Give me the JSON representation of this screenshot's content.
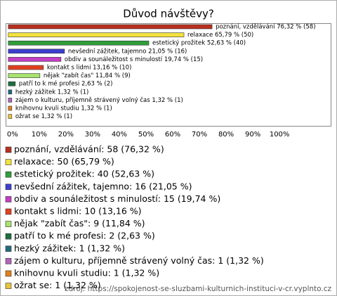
{
  "chart_data": {
    "type": "bar",
    "orientation": "horizontal",
    "title": "Důvod návštěvy?",
    "values": [
      76.32,
      65.79,
      52.63,
      21.05,
      19.74,
      13.16,
      11.84,
      2.63,
      1.32,
      1.32,
      1.32,
      1.32
    ],
    "value_labels": [
      "poznání, vzdělávání 76,32 % (58)",
      "relaxace 65,79 % (50)",
      "estetický prožitek 52,63 % (40)",
      "nevšední zážitek, tajemno 21,05 % (16)",
      "obdiv a sounáležitost s minulostí 19,74 % (15)",
      "kontakt s lidmi 13,16 % (10)",
      "nějak \"zabít čas\" 11,84 % (9)",
      "patří to k mé profesi 2,63 % (2)",
      "hezký zážitek 1,32 % (1)",
      "zájem o kulturu, příjemně strávený volný čas 1,32 % (1)",
      "knihovnu kvuli studiu 1,32 % (1)",
      "ožrat se 1,32 % (1)"
    ],
    "legend_labels": [
      "poznání, vzdělávání: 58 (76,32 %)",
      "relaxace: 50 (65,79 %)",
      "estetický prožitek: 40 (52,63 %)",
      "nevšední zážitek, tajemno: 16 (21,05 %)",
      "obdiv a sounáležitost s minulostí: 15 (19,74 %)",
      "kontakt s lidmi: 10 (13,16 %)",
      "nějak \"zabít čas\": 9 (11,84 %)",
      "patří to k mé profesi: 2 (2,63 %)",
      "hezký zážitek: 1 (1,32 %)",
      "zájem o kulturu, příjemně strávený volný čas: 1 (1,32 %)",
      "knihovnu kvuli studiu: 1 (1,32 %)",
      "ožrat se: 1 (1,32 %)"
    ],
    "colors": [
      "#b8301f",
      "#f2e23c",
      "#2f9e3a",
      "#3d3fd0",
      "#c23ec4",
      "#e2401f",
      "#a6e36f",
      "#1f6e3e",
      "#206c7e",
      "#b264b8",
      "#e2801f",
      "#e6c43c"
    ],
    "xlim": [
      -1,
      121
    ],
    "xticks": [
      {
        "value": 0,
        "label": "0%"
      },
      {
        "value": 10,
        "label": "10%"
      },
      {
        "value": 20,
        "label": "20%"
      },
      {
        "value": 30,
        "label": "30%"
      },
      {
        "value": 40,
        "label": "40%"
      },
      {
        "value": 50,
        "label": "50%"
      },
      {
        "value": 60,
        "label": "60%"
      },
      {
        "value": 70,
        "label": "70%"
      },
      {
        "value": 80,
        "label": "80%"
      },
      {
        "value": 90,
        "label": "90%"
      },
      {
        "value": 100,
        "label": "100%"
      }
    ],
    "source": "zdroj: https://spokojenost-se-sluzbami-kulturnich-instituci-v-cr.vyplnto.cz"
  }
}
